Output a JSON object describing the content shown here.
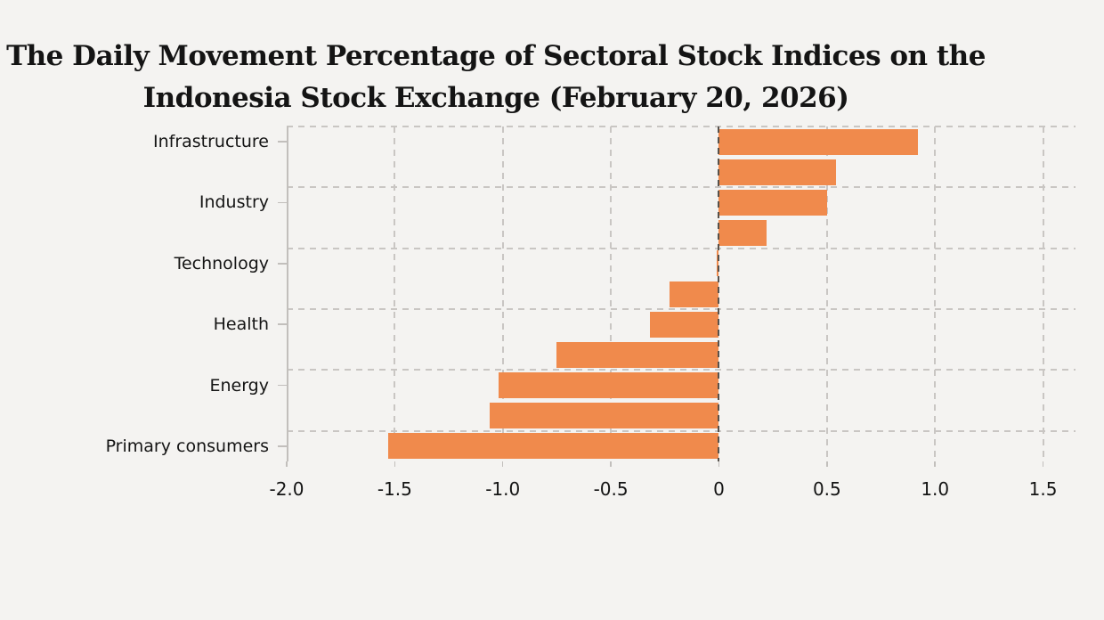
{
  "title": {
    "line1": "The Daily Movement Percentage of Sectoral Stock Indices on the",
    "line2": "Indonesia Stock Exchange (February 20, 2026)"
  },
  "chart_data": {
    "type": "bar",
    "orientation": "horizontal",
    "title": "The Daily Movement Percentage of Sectoral Stock Indices on the Indonesia Stock Exchange (February 20, 2026)",
    "categories": [
      "Infrastructure",
      "",
      "Industry",
      "",
      "Technology",
      "",
      "Health",
      "",
      "Energy",
      "",
      "Primary consumers"
    ],
    "values": [
      0.92,
      0.54,
      0.5,
      0.22,
      -0.01,
      -0.23,
      -0.32,
      -0.75,
      -1.02,
      -1.06,
      -1.53
    ],
    "labeled_tick_indices": [
      0,
      2,
      4,
      6,
      8,
      10
    ],
    "x_tick_values": [
      -2.0,
      -1.5,
      -1.0,
      -0.5,
      0,
      0.5,
      1.0,
      1.5
    ],
    "x_tick_labels": [
      "-2.0",
      "-1.5",
      "-1.0",
      "-0.5",
      "0",
      "0.5",
      "1.0",
      "1.5"
    ],
    "xlim": [
      -2.0,
      1.65
    ],
    "grid": "dashed",
    "legend": "none",
    "xlabel": "",
    "ylabel": "",
    "colors": {
      "bar": "#f08a4c",
      "background": "#f4f3f1",
      "grid": "#c9c6c3",
      "zero_line": "#57524c",
      "axis": "#c2bfbc",
      "text": "#141414"
    }
  }
}
